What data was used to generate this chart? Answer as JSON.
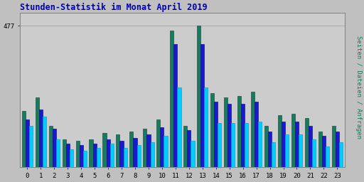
{
  "title": "Stunden-Statistik im Monat April 2019",
  "ylabel_right": "Seiten / Dateien / Anfragen",
  "hours": [
    0,
    1,
    2,
    3,
    4,
    5,
    6,
    7,
    8,
    9,
    10,
    11,
    12,
    13,
    14,
    15,
    16,
    17,
    18,
    19,
    20,
    21,
    22,
    23
  ],
  "seiten": [
    190,
    235,
    140,
    95,
    90,
    95,
    115,
    110,
    120,
    130,
    160,
    460,
    140,
    477,
    250,
    235,
    240,
    255,
    140,
    175,
    180,
    165,
    120,
    140
  ],
  "dateien": [
    160,
    195,
    130,
    80,
    75,
    80,
    95,
    90,
    100,
    110,
    135,
    415,
    125,
    415,
    220,
    215,
    215,
    220,
    120,
    155,
    155,
    140,
    105,
    120
  ],
  "anfragen": [
    140,
    170,
    95,
    60,
    55,
    65,
    80,
    65,
    75,
    85,
    105,
    270,
    90,
    270,
    150,
    150,
    150,
    155,
    85,
    110,
    110,
    95,
    70,
    85
  ],
  "color_seiten": "#1a7a5e",
  "color_dateien": "#1a1acc",
  "color_anfragen": "#00ccff",
  "bg_color": "#c0c0c0",
  "plot_bg": "#cccccc",
  "ylim": [
    0,
    520
  ],
  "ytick_val": 477,
  "bar_width": 0.27
}
